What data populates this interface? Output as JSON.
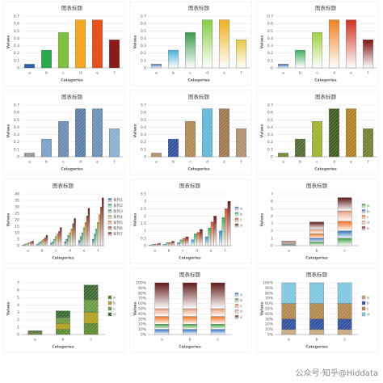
{
  "chart_data": [
    {
      "type": "bar",
      "title": "图表标题",
      "x_label": "Categories",
      "y_label": "Values",
      "categories": [
        "a",
        "b",
        "c",
        "d",
        "e",
        "f"
      ],
      "values": [
        0.05,
        0.24,
        0.48,
        0.65,
        0.65,
        0.38
      ],
      "colors": [
        "#2f5fb0",
        "#2ea84f",
        "#7fc241",
        "#f5a623",
        "#e8501c",
        "#8b1a1a"
      ],
      "fill_style": "solid",
      "ylim": [
        0,
        0.7
      ],
      "yticks": [
        0,
        0.1,
        0.2,
        0.3,
        0.4,
        0.5,
        0.6,
        0.7
      ],
      "grid": true
    },
    {
      "type": "bar",
      "title": "图表标题",
      "x_label": "Categories",
      "y_label": "Values",
      "categories": [
        "a",
        "b",
        "c",
        "d",
        "e",
        "f"
      ],
      "values": [
        0.05,
        0.24,
        0.48,
        0.65,
        0.65,
        0.38
      ],
      "colors": [
        "#3a6fc0",
        "#4ab0d8",
        "#3a9a4a",
        "#88cc44",
        "#f0b020",
        "#e8c840"
      ],
      "fill_style": "gradient",
      "ylim": [
        0,
        0.7
      ],
      "yticks": [
        0,
        0.1,
        0.2,
        0.3,
        0.4,
        0.5,
        0.6,
        0.7
      ],
      "grid": true
    },
    {
      "type": "bar",
      "title": "图表标题",
      "x_label": "Categories",
      "y_label": "Values",
      "categories": [
        "a",
        "b",
        "c",
        "d",
        "e",
        "f"
      ],
      "values": [
        0.05,
        0.24,
        0.48,
        0.65,
        0.65,
        0.38
      ],
      "colors": [
        "#3060b0",
        "#40b060",
        "#a0d040",
        "#f08020",
        "#d03020",
        "#801010"
      ],
      "fill_style": "gradient",
      "ylim": [
        0,
        0.7
      ],
      "yticks": [
        0,
        0.1,
        0.2,
        0.3,
        0.4,
        0.5,
        0.6,
        0.7
      ],
      "grid": true
    },
    {
      "type": "bar",
      "title": "图表标题",
      "x_label": "Categories",
      "y_label": "Values",
      "categories": [
        "a",
        "b",
        "c",
        "d",
        "e",
        "f"
      ],
      "values": [
        0.05,
        0.24,
        0.48,
        0.65,
        0.65,
        0.38
      ],
      "colors": [
        "#999999",
        "#7aa0c8",
        "#6a8ab0",
        "#5a7ca8",
        "#6a90b8",
        "#8aaed0"
      ],
      "fill_style": "pattern",
      "ylim": [
        0,
        0.7
      ],
      "yticks": [
        0,
        0.1,
        0.2,
        0.3,
        0.4,
        0.5,
        0.6,
        0.7
      ],
      "grid": true
    },
    {
      "type": "bar",
      "title": "图表标题",
      "x_label": "Categories",
      "y_label": "Values",
      "categories": [
        "a",
        "b",
        "c",
        "d",
        "e",
        "f"
      ],
      "values": [
        0.05,
        0.24,
        0.48,
        0.65,
        0.65,
        0.38
      ],
      "colors": [
        "#b09068",
        "#3050a0",
        "#b08850",
        "#60b8d8",
        "#a07850",
        "#b09070"
      ],
      "fill_style": "pattern",
      "ylim": [
        0,
        0.7
      ],
      "yticks": [
        0,
        0.1,
        0.2,
        0.3,
        0.4,
        0.5,
        0.6,
        0.7
      ],
      "grid": true
    },
    {
      "type": "bar",
      "title": "图表标题",
      "x_label": "Categories",
      "y_label": "Values",
      "categories": [
        "a",
        "b",
        "c",
        "d",
        "e",
        "f"
      ],
      "values": [
        0.05,
        0.24,
        0.48,
        0.65,
        0.65,
        0.38
      ],
      "colors": [
        "#6a8a30",
        "#506a30",
        "#a0b030",
        "#405a20",
        "#b08020",
        "#708030"
      ],
      "fill_style": "pattern",
      "ylim": [
        0,
        0.7
      ],
      "yticks": [
        0,
        0.1,
        0.2,
        0.3,
        0.4,
        0.5,
        0.6,
        0.7
      ],
      "grid": true
    },
    {
      "type": "bar",
      "title": "图表标题",
      "x_label": "Categories",
      "y_label": "Values",
      "categories": [
        "a",
        "b",
        "c",
        "d",
        "e",
        "f"
      ],
      "fill_style": "gradient",
      "ylim": [
        0,
        40
      ],
      "yticks": [
        0,
        5,
        10,
        15,
        20,
        25,
        30,
        35,
        40
      ],
      "grid": true,
      "series": [
        {
          "name": "系列1",
          "color": "#2f5fb0",
          "values": [
            0.5,
            1,
            2,
            3,
            4,
            5
          ]
        },
        {
          "name": "系列2",
          "color": "#2ea84f",
          "values": [
            1,
            2,
            3,
            5,
            7,
            9
          ]
        },
        {
          "name": "系列3",
          "color": "#40a0a0",
          "values": [
            1.5,
            3,
            5,
            8,
            10,
            13
          ]
        },
        {
          "name": "系列4",
          "color": "#88c040",
          "values": [
            2,
            4,
            7,
            10,
            14,
            18
          ]
        },
        {
          "name": "系列5",
          "color": "#f08020",
          "values": [
            2.5,
            5,
            9,
            13,
            18,
            24
          ]
        },
        {
          "name": "系列6",
          "color": "#a04020",
          "values": [
            3,
            6,
            11,
            17,
            23,
            30
          ]
        },
        {
          "name": "系列7",
          "color": "#601010",
          "values": [
            3.5,
            8,
            14,
            21,
            29,
            37
          ]
        }
      ]
    },
    {
      "type": "bar",
      "title": "图表标题",
      "x_label": "Categories",
      "y_label": "Values",
      "categories": [
        "a",
        "b",
        "c",
        "d",
        "e",
        "f"
      ],
      "fill_style": "gradient",
      "ylim": [
        0,
        3.5
      ],
      "yticks": [
        0,
        0.5,
        1,
        1.5,
        2,
        2.5,
        3,
        3.5
      ],
      "grid": true,
      "series": [
        {
          "name": "a",
          "color": "#3a8ad0",
          "values": [
            0.05,
            0.1,
            0.2,
            0.4,
            0.6,
            1.0
          ]
        },
        {
          "name": "b",
          "color": "#40b060",
          "values": [
            0.1,
            0.2,
            0.4,
            0.8,
            1.2,
            1.9
          ]
        },
        {
          "name": "c",
          "color": "#e05020",
          "values": [
            0.1,
            0.2,
            0.5,
            0.9,
            1.6,
            2.5
          ]
        },
        {
          "name": "d",
          "color": "#701818",
          "values": [
            0.15,
            0.3,
            0.6,
            1.1,
            2.0,
            3.0
          ]
        }
      ]
    },
    {
      "type": "stacked_bar",
      "title": "图表标题",
      "x_label": "Categories",
      "y_label": "Values",
      "categories": [
        "a",
        "b",
        "c"
      ],
      "fill_style": "gradient",
      "ylim": [
        0,
        7
      ],
      "yticks": [
        0,
        1,
        2,
        3,
        4,
        5,
        6,
        7
      ],
      "grid": true,
      "series": [
        {
          "name": "a",
          "color": "#40a040",
          "values": [
            0.1,
            0.5,
            1.0
          ]
        },
        {
          "name": "b",
          "color": "#3070c0",
          "values": [
            0.1,
            0.5,
            1.0
          ]
        },
        {
          "name": "c",
          "color": "#f07020",
          "values": [
            0.1,
            0.6,
            1.3
          ]
        },
        {
          "name": "d",
          "color": "#e8a080",
          "values": [
            0.1,
            0.6,
            1.4
          ]
        },
        {
          "name": "e",
          "color": "#601818",
          "values": [
            0.2,
            1.0,
            1.8
          ]
        }
      ]
    },
    {
      "type": "stacked_bar",
      "x_label": "Categories",
      "y_label": "Values",
      "categories": [
        "a",
        "b",
        "c"
      ],
      "fill_style": "pattern",
      "ylim": [
        0,
        7
      ],
      "yticks": [
        0,
        1,
        2,
        3,
        4,
        5,
        6,
        7
      ],
      "grid": true,
      "series": [
        {
          "name": "a",
          "color": "#5a8a30",
          "values": [
            0.1,
            0.7,
            1.5
          ]
        },
        {
          "name": "b",
          "color": "#b0a020",
          "values": [
            0.1,
            0.8,
            1.5
          ]
        },
        {
          "name": "c",
          "color": "#6a9a40",
          "values": [
            0.1,
            0.8,
            1.7
          ]
        },
        {
          "name": "d",
          "color": "#3a6a30",
          "values": [
            0.2,
            0.9,
            2.0
          ]
        }
      ]
    },
    {
      "type": "percent_bar",
      "title": "图表标题",
      "x_label": "Categories",
      "y_label": "Values",
      "categories": [
        "a",
        "b",
        "c"
      ],
      "fill_style": "gradient",
      "ylim": [
        0,
        100
      ],
      "yticks": [
        {
          "value": 0,
          "label": "0%"
        },
        {
          "value": 10,
          "label": "10%"
        },
        {
          "value": 20,
          "label": "20%"
        },
        {
          "value": 30,
          "label": "30%"
        },
        {
          "value": 40,
          "label": "40%"
        },
        {
          "value": 50,
          "label": "50%"
        },
        {
          "value": 60,
          "label": "60%"
        },
        {
          "value": 70,
          "label": "70%"
        },
        {
          "value": 80,
          "label": "80%"
        },
        {
          "value": 90,
          "label": "90%"
        },
        {
          "value": 100,
          "label": "100%"
        }
      ],
      "grid": true,
      "series": [
        {
          "name": "a",
          "color": "#3070c0",
          "values": [
            10,
            10,
            10
          ]
        },
        {
          "name": "b",
          "color": "#40a040",
          "values": [
            10,
            10,
            10
          ]
        },
        {
          "name": "c",
          "color": "#f07020",
          "values": [
            15,
            15,
            15
          ]
        },
        {
          "name": "d",
          "color": "#e8a080",
          "values": [
            15,
            15,
            15
          ]
        },
        {
          "name": "e",
          "color": "#601818",
          "values": [
            50,
            50,
            50
          ]
        }
      ]
    },
    {
      "type": "percent_bar",
      "title": "图表标题",
      "x_label": "Categories",
      "y_label": "Values",
      "categories": [
        "a",
        "b",
        "c"
      ],
      "fill_style": "pattern",
      "ylim": [
        0,
        100
      ],
      "yticks": [
        {
          "value": 0,
          "label": "0%"
        },
        {
          "value": 10,
          "label": "10%"
        },
        {
          "value": 20,
          "label": "20%"
        },
        {
          "value": 30,
          "label": "30%"
        },
        {
          "value": 40,
          "label": "40%"
        },
        {
          "value": 50,
          "label": "50%"
        },
        {
          "value": 60,
          "label": "60%"
        },
        {
          "value": 70,
          "label": "70%"
        },
        {
          "value": 80,
          "label": "80%"
        },
        {
          "value": 90,
          "label": "90%"
        },
        {
          "value": 100,
          "label": "100%"
        }
      ],
      "grid": true,
      "series": [
        {
          "name": "a",
          "color": "#c8a880",
          "values": [
            10,
            10,
            10
          ]
        },
        {
          "name": "b",
          "color": "#3050a0",
          "values": [
            20,
            20,
            20
          ]
        },
        {
          "name": "c",
          "color": "#b08850",
          "values": [
            30,
            30,
            30
          ]
        },
        {
          "name": "d",
          "color": "#80c8e0",
          "values": [
            40,
            40,
            40
          ]
        }
      ]
    }
  ],
  "watermark": "公众号·知乎@Hiddata"
}
